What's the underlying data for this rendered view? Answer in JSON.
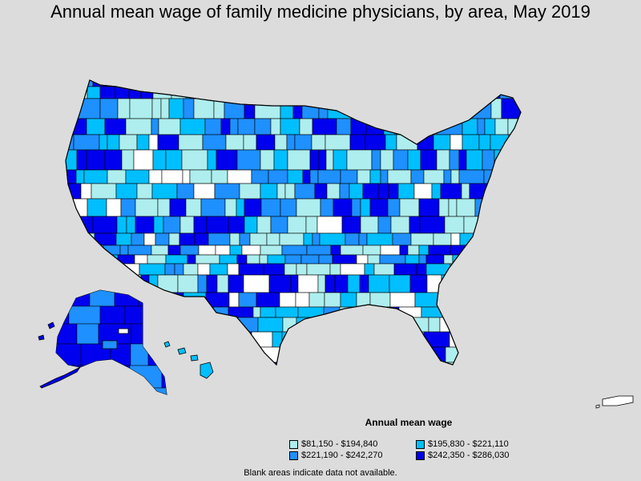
{
  "title": "Annual mean wage of family medicine physicians, by area, May 2019",
  "legend": {
    "title": "Annual mean wage",
    "items": [
      {
        "label": "$81,150 - $194,840",
        "color": "#aeeeee"
      },
      {
        "label": "$195,830 - $221,110",
        "color": "#00bfff"
      },
      {
        "label": "$221,190 - $242,270",
        "color": "#1e90ff"
      },
      {
        "label": "$242,350 - $286,030",
        "color": "#0000ee"
      }
    ]
  },
  "note": "Blank areas indicate data not available.",
  "colors": {
    "background": "#dcdcdc",
    "blank": "#ffffff",
    "tier1": "#aeeeee",
    "tier2": "#00bfff",
    "tier3": "#1e90ff",
    "tier4": "#0000ee",
    "border": "#000000"
  }
}
